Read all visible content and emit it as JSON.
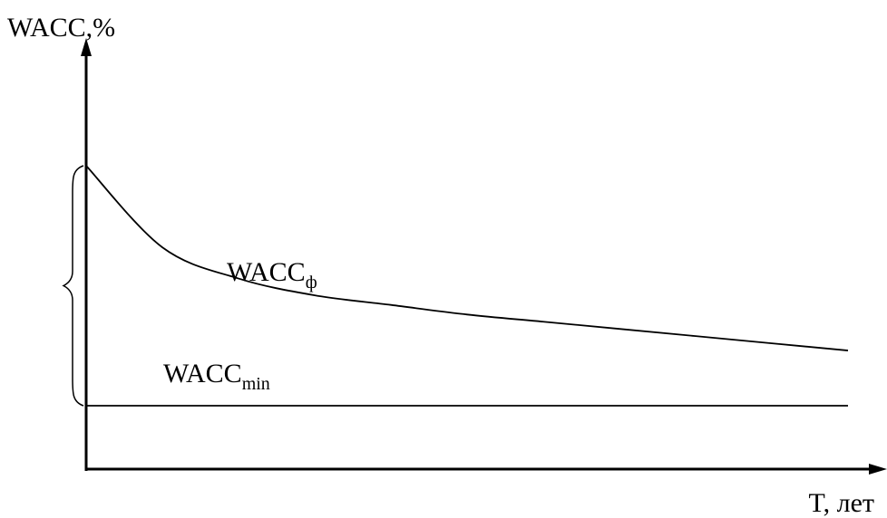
{
  "chart_data": {
    "type": "line",
    "ylabel": "WACC,%",
    "xlabel": "T, лет",
    "ticks": "none",
    "grid": false,
    "series": [
      {
        "name": "WACC",
        "name_sub": "ф",
        "x": [
          0,
          1,
          2,
          3,
          4,
          5,
          6,
          7,
          8,
          9,
          10
        ],
        "y": [
          1.0,
          0.66,
          0.53,
          0.46,
          0.42,
          0.38,
          0.35,
          0.32,
          0.29,
          0.26,
          0.23
        ]
      },
      {
        "name": "WACC",
        "name_sub": "min",
        "x": [
          0,
          10
        ],
        "y": [
          0.0,
          0.0
        ]
      }
    ],
    "annotations": [
      {
        "type": "brace",
        "from_y": 1.0,
        "to_y": 0.0,
        "side": "left-of-y-axis"
      }
    ]
  }
}
